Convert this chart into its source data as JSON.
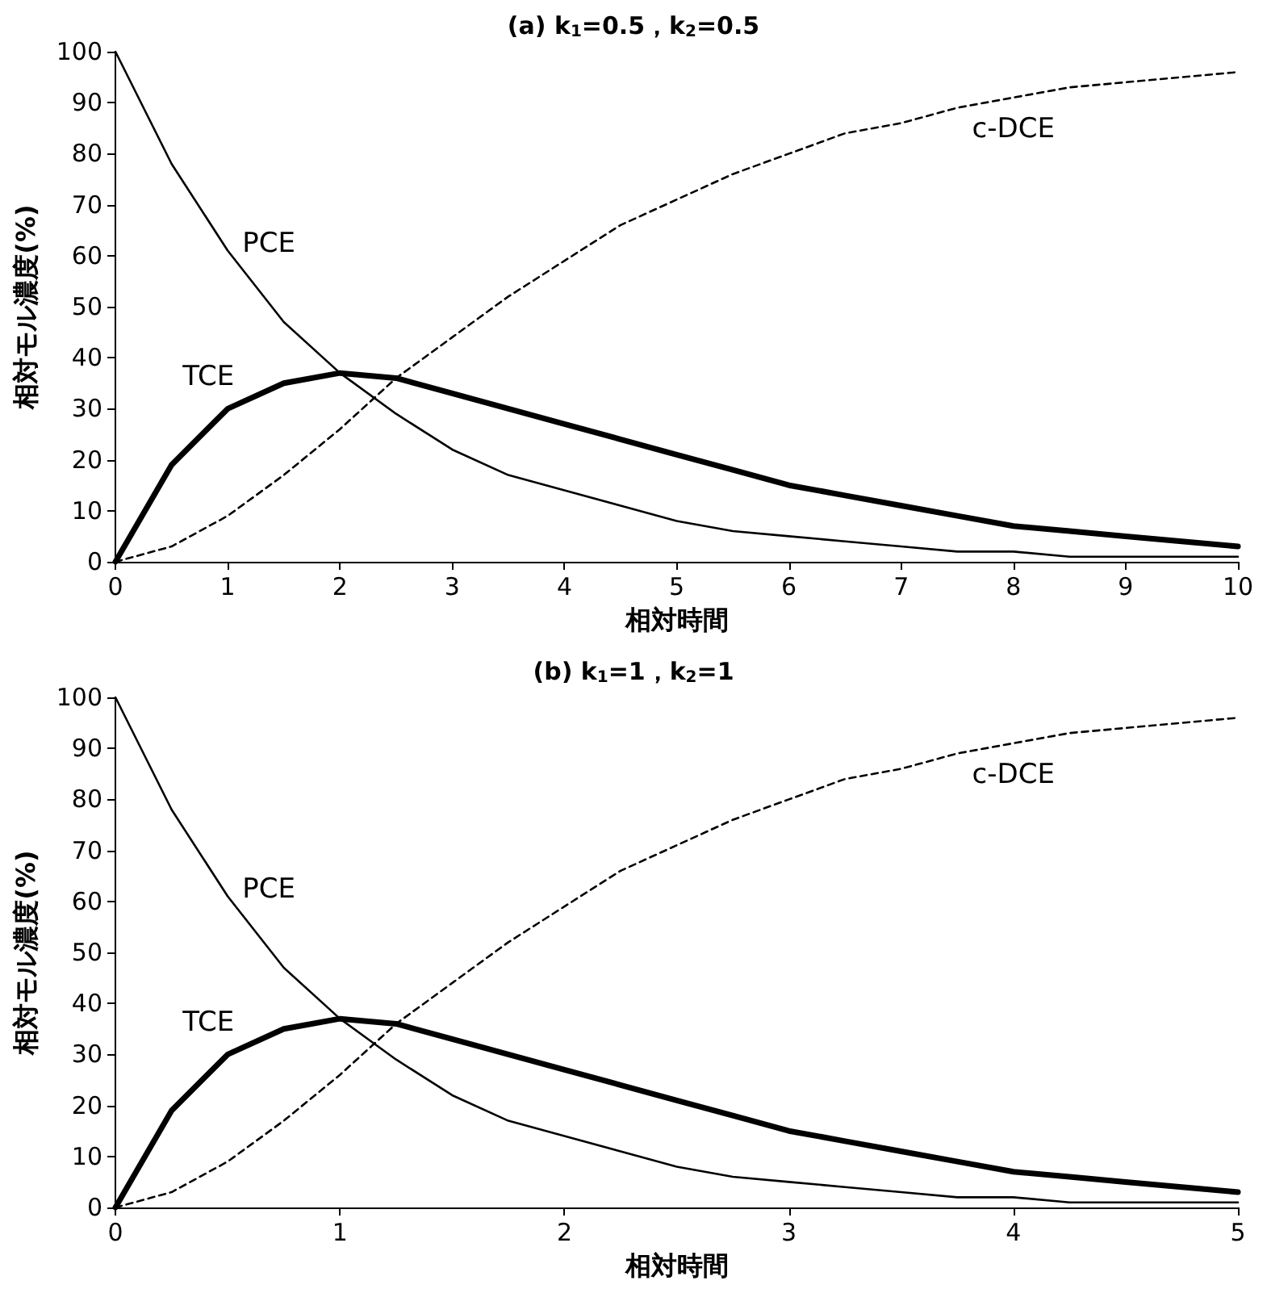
{
  "chart_data": [
    {
      "type": "line",
      "title": "(a) k$_{1}$=0.5，k$_{2}$=0.5",
      "xlabel": "相対時間",
      "ylabel": "相対モル濃度(%)",
      "x": [
        0,
        0.5,
        1,
        1.5,
        2,
        2.5,
        3,
        3.5,
        4,
        4.5,
        5,
        5.5,
        6,
        6.5,
        7,
        7.5,
        8,
        8.5,
        9,
        9.5,
        10
      ],
      "series": [
        {
          "name": "PCE",
          "color": "#000000",
          "line_style": "solid",
          "values": [
            100,
            78,
            61,
            47,
            37,
            29,
            22,
            17,
            14,
            11,
            8,
            6,
            5,
            4,
            3,
            2,
            2,
            1,
            1,
            1,
            1
          ]
        },
        {
          "name": "TCE",
          "color": "#000000",
          "line_style": "solid",
          "values": [
            0,
            19,
            30,
            35,
            37,
            36,
            33,
            30,
            27,
            24,
            21,
            18,
            15,
            13,
            11,
            9,
            7,
            6,
            5,
            4,
            3
          ]
        },
        {
          "name": "c-DCE",
          "color": "#000000",
          "line_style": "dashed",
          "values": [
            0,
            3,
            9,
            17,
            26,
            36,
            44,
            52,
            59,
            66,
            71,
            76,
            80,
            84,
            86,
            89,
            91,
            93,
            94,
            95,
            96
          ]
        }
      ],
      "xlim": [
        0,
        10
      ],
      "xticks": [
        0,
        1,
        2,
        3,
        4,
        5,
        6,
        7,
        8,
        9,
        10
      ],
      "ylim": [
        0,
        100
      ],
      "yticks": [
        0,
        10,
        20,
        30,
        40,
        50,
        60,
        70,
        80,
        90,
        100
      ],
      "grid": false,
      "legend": false,
      "marker": "none"
    },
    {
      "type": "line",
      "title": "(b) k$_{1}$=1，k$_{2}$=1",
      "xlabel": "相対時間",
      "ylabel": "相対モル濃度(%)",
      "x": [
        0,
        0.25,
        0.5,
        0.75,
        1,
        1.25,
        1.5,
        1.75,
        2,
        2.25,
        2.5,
        2.75,
        3,
        3.25,
        3.5,
        3.75,
        4,
        4.25,
        4.5,
        4.75,
        5
      ],
      "series": [
        {
          "name": "PCE",
          "color": "#000000",
          "line_style": "solid",
          "values": [
            100,
            78,
            61,
            47,
            37,
            29,
            22,
            17,
            14,
            11,
            8,
            6,
            5,
            4,
            3,
            2,
            2,
            1,
            1,
            1,
            1
          ]
        },
        {
          "name": "TCE",
          "color": "#000000",
          "line_style": "solid",
          "values": [
            0,
            19,
            30,
            35,
            37,
            36,
            33,
            30,
            27,
            24,
            21,
            18,
            15,
            13,
            11,
            9,
            7,
            6,
            5,
            4,
            3
          ]
        },
        {
          "name": "c-DCE",
          "color": "#000000",
          "line_style": "dashed",
          "values": [
            0,
            3,
            9,
            17,
            26,
            36,
            44,
            52,
            59,
            66,
            71,
            76,
            80,
            84,
            86,
            89,
            91,
            93,
            94,
            95,
            96
          ]
        }
      ],
      "xlim": [
        0,
        5
      ],
      "xticks": [
        0,
        1,
        2,
        3,
        4,
        5
      ],
      "ylim": [
        0,
        100
      ],
      "yticks": [
        0,
        10,
        20,
        30,
        40,
        50,
        60,
        70,
        80,
        90,
        100
      ],
      "grid": false,
      "legend": false,
      "marker": "none"
    }
  ]
}
